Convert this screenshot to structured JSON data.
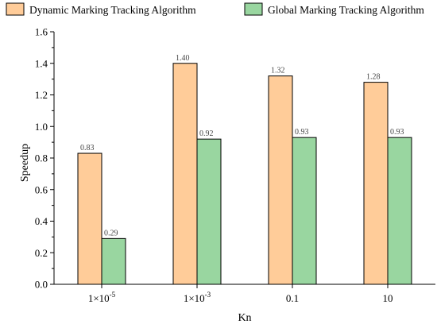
{
  "chart_data": {
    "type": "bar",
    "categories": [
      "1×10",
      "1×10",
      "0.1",
      "10"
    ],
    "category_superscripts": [
      "-5",
      "-3",
      "",
      ""
    ],
    "series": [
      {
        "name": "Dynamic Marking Tracking Algorithm",
        "values": [
          0.83,
          1.4,
          1.32,
          1.28
        ],
        "labels": [
          "0.83",
          "1.40",
          "1.32",
          "1.28"
        ],
        "color": "#ffcc99"
      },
      {
        "name": "Global Marking Tracking Algorithm",
        "values": [
          0.29,
          0.92,
          0.93,
          0.93
        ],
        "labels": [
          "0.29",
          "0.92",
          "0.93",
          "0.93"
        ],
        "color": "#99d6a0"
      }
    ],
    "xlabel": "Kn",
    "ylabel": "Speedup",
    "ylim": [
      0.0,
      1.6
    ],
    "yticks": [
      "0.0",
      "0.2",
      "0.4",
      "0.6",
      "0.8",
      "1.0",
      "1.2",
      "1.4",
      "1.6"
    ],
    "legend_position": "top",
    "grid": false
  }
}
